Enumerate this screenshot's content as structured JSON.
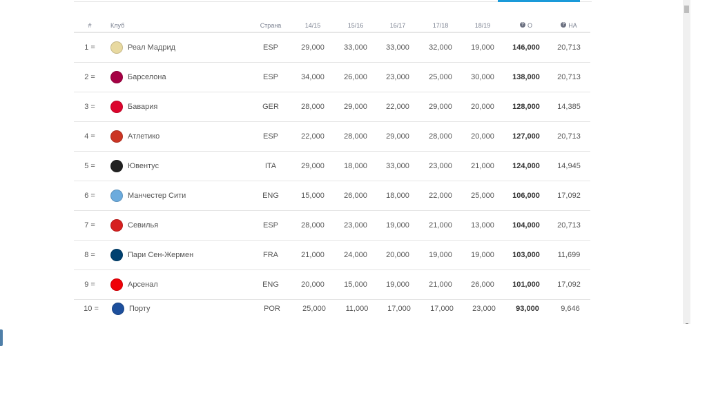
{
  "table": {
    "headers": {
      "rank": "#",
      "club": "Клуб",
      "country": "Страна",
      "s1": "14/15",
      "s2": "15/16",
      "s3": "16/17",
      "s4": "17/18",
      "s5": "18/19",
      "total": "О",
      "assoc": "НА"
    },
    "help_icon": "question-circle-icon",
    "rows": [
      {
        "rank": "1",
        "trend": "=",
        "club": "Реал Мадрид",
        "country": "ESP",
        "s": [
          "29,000",
          "33,000",
          "33,000",
          "32,000",
          "19,000"
        ],
        "total": "146,000",
        "assoc": "20,713",
        "color": "#e8d9a0"
      },
      {
        "rank": "2",
        "trend": "=",
        "club": "Барселона",
        "country": "ESP",
        "s": [
          "34,000",
          "26,000",
          "23,000",
          "25,000",
          "30,000"
        ],
        "total": "138,000",
        "assoc": "20,713",
        "color": "#a50044"
      },
      {
        "rank": "3",
        "trend": "=",
        "club": "Бавария",
        "country": "GER",
        "s": [
          "28,000",
          "29,000",
          "22,000",
          "29,000",
          "20,000"
        ],
        "total": "128,000",
        "assoc": "14,385",
        "color": "#dc052d"
      },
      {
        "rank": "4",
        "trend": "=",
        "club": "Атлетико",
        "country": "ESP",
        "s": [
          "22,000",
          "28,000",
          "29,000",
          "28,000",
          "20,000"
        ],
        "total": "127,000",
        "assoc": "20,713",
        "color": "#cb3524"
      },
      {
        "rank": "5",
        "trend": "=",
        "club": "Ювентус",
        "country": "ITA",
        "s": [
          "29,000",
          "18,000",
          "33,000",
          "23,000",
          "21,000"
        ],
        "total": "124,000",
        "assoc": "14,945",
        "color": "#222222"
      },
      {
        "rank": "6",
        "trend": "=",
        "club": "Манчестер Сити",
        "country": "ENG",
        "s": [
          "15,000",
          "26,000",
          "18,000",
          "22,000",
          "25,000"
        ],
        "total": "106,000",
        "assoc": "17,092",
        "color": "#6cabdd"
      },
      {
        "rank": "7",
        "trend": "=",
        "club": "Севилья",
        "country": "ESP",
        "s": [
          "28,000",
          "23,000",
          "19,000",
          "21,000",
          "13,000"
        ],
        "total": "104,000",
        "assoc": "20,713",
        "color": "#d6201f"
      },
      {
        "rank": "8",
        "trend": "=",
        "club": "Пари Сен-Жермен",
        "country": "FRA",
        "s": [
          "21,000",
          "24,000",
          "20,000",
          "19,000",
          "19,000"
        ],
        "total": "103,000",
        "assoc": "11,699",
        "color": "#004170"
      },
      {
        "rank": "9",
        "trend": "=",
        "club": "Арсенал",
        "country": "ENG",
        "s": [
          "20,000",
          "15,000",
          "19,000",
          "21,000",
          "26,000"
        ],
        "total": "101,000",
        "assoc": "17,092",
        "color": "#ef0107"
      },
      {
        "rank": "10",
        "trend": "=",
        "club": "Порту",
        "country": "POR",
        "s": [
          "25,000",
          "11,000",
          "17,000",
          "17,000",
          "23,000"
        ],
        "total": "93,000",
        "assoc": "9,646",
        "color": "#1d4f9c"
      }
    ]
  },
  "colors": {
    "accent": "#1a9ad9"
  }
}
